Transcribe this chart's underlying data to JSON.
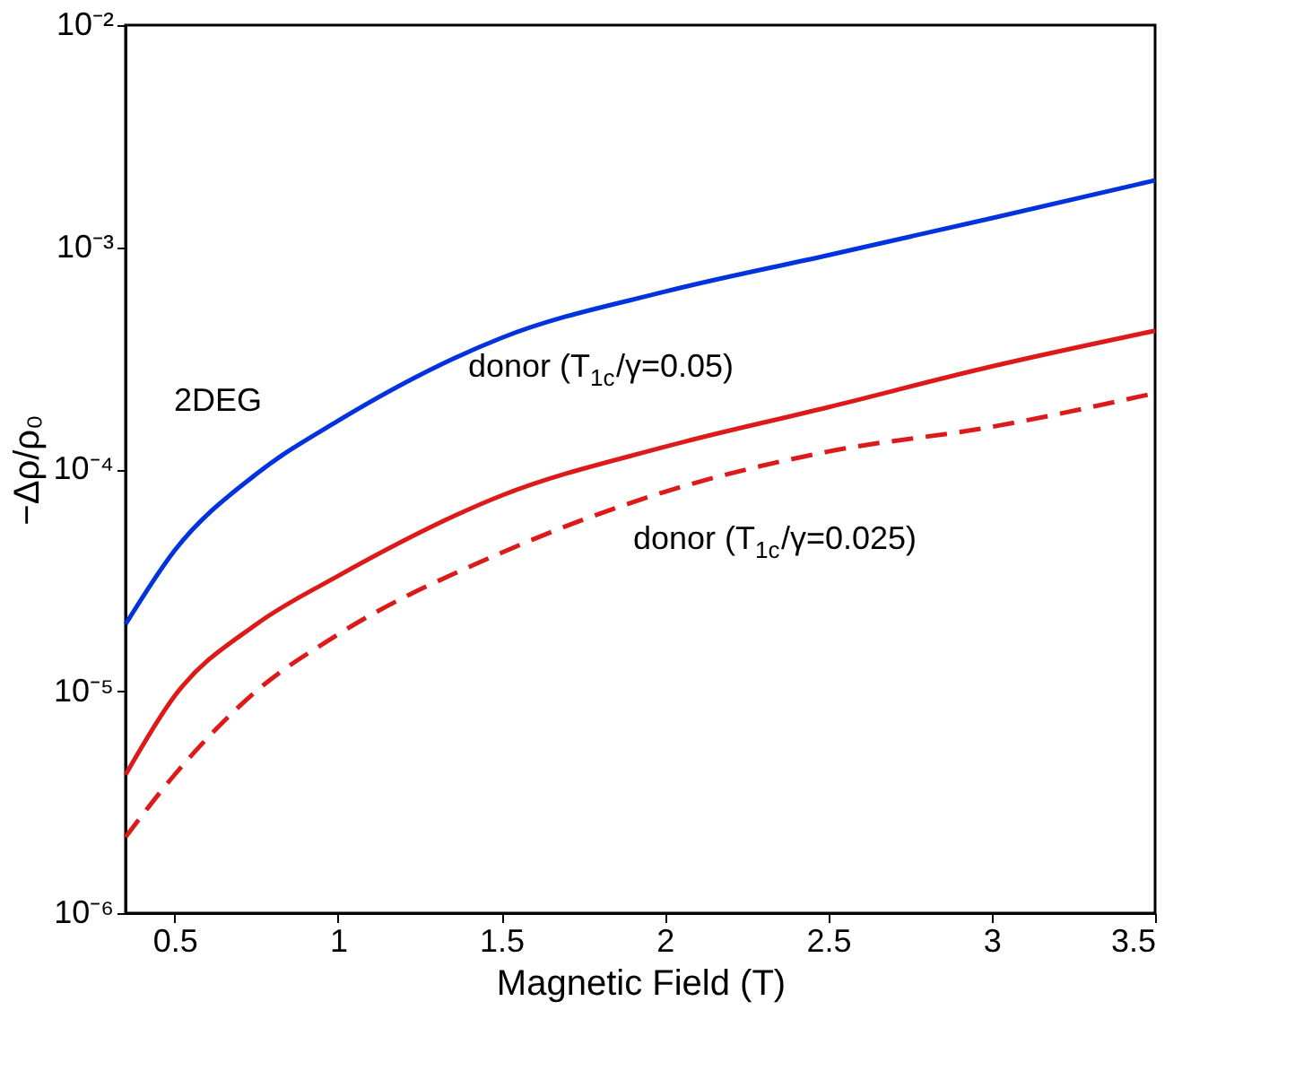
{
  "chart_data": {
    "type": "line",
    "xlabel": "Magnetic Field (T)",
    "ylabel": "−Δρ/ρ₀",
    "log": "y",
    "grid": false,
    "xlim": [
      0.35,
      3.5
    ],
    "xticks": [
      0.5,
      1,
      1.5,
      2,
      2.5,
      3,
      3.5
    ],
    "ylim": [
      1e-06,
      0.01
    ],
    "yticks": [
      {
        "value": 1e-06,
        "label": "10⁻⁶"
      },
      {
        "value": 1e-05,
        "label": "10⁻⁵"
      },
      {
        "value": 0.0001,
        "label": "10⁻⁴"
      },
      {
        "value": 0.001,
        "label": "10⁻³"
      },
      {
        "value": 0.01,
        "label": "10⁻²"
      }
    ],
    "x": [
      0.35,
      0.5,
      0.75,
      1,
      1.5,
      2,
      2.5,
      3,
      3.5
    ],
    "series": [
      {
        "color": "#0033dd",
        "line_style": "solid",
        "values": [
          2e-05,
          4.3e-05,
          9.5e-05,
          0.000165,
          0.00039,
          0.00063,
          0.00092,
          0.00135,
          0.002
        ]
      },
      {
        "color": "#dd1a1a",
        "line_style": "solid",
        "values": [
          4.2e-06,
          9.5e-06,
          2e-05,
          3.3e-05,
          7.6e-05,
          0.000126,
          0.00019,
          0.00029,
          0.00042
        ]
      },
      {
        "color": "#dd1a1a",
        "line_style": "dashed",
        "values": [
          2.2e-06,
          4.2e-06,
          1e-05,
          1.8e-05,
          4.2e-05,
          7.9e-05,
          0.00012,
          0.000155,
          0.00022
        ]
      }
    ],
    "annotations": [
      "2DEG",
      "donor (T$_{1c}$/γ=0.05)",
      "donor (T$_{1c}$/γ=0.025)"
    ]
  }
}
